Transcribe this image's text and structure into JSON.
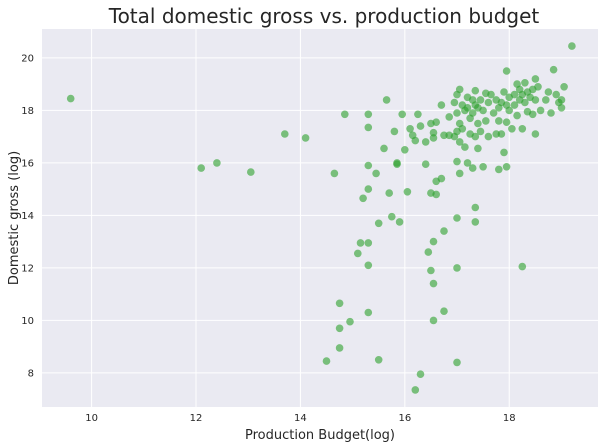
{
  "chart_data": {
    "type": "scatter",
    "title": "Total domestic gross vs. production budget",
    "xlabel": "Production Budget(log)",
    "ylabel": "Domestic gross (log)",
    "xlim": [
      9.05,
      19.7
    ],
    "ylim": [
      6.7,
      21.1
    ],
    "xticks": [
      10,
      12,
      14,
      16,
      18
    ],
    "yticks": [
      8,
      10,
      12,
      14,
      16,
      18,
      20
    ],
    "grid": true,
    "background": "#EAEAF2",
    "grid_color": "#FFFFFF",
    "marker_color": "#2CA02C",
    "points": [
      [
        9.6,
        18.45
      ],
      [
        12.1,
        15.8
      ],
      [
        12.4,
        16.0
      ],
      [
        13.05,
        15.65
      ],
      [
        13.7,
        17.1
      ],
      [
        14.1,
        16.95
      ],
      [
        14.5,
        8.45
      ],
      [
        14.65,
        15.6
      ],
      [
        14.75,
        10.65
      ],
      [
        14.75,
        8.95
      ],
      [
        14.75,
        9.7
      ],
      [
        14.85,
        17.85
      ],
      [
        14.95,
        9.95
      ],
      [
        15.1,
        12.55
      ],
      [
        15.15,
        12.95
      ],
      [
        15.2,
        14.65
      ],
      [
        15.3,
        17.85
      ],
      [
        15.3,
        17.35
      ],
      [
        15.3,
        15.9
      ],
      [
        15.3,
        15.0
      ],
      [
        15.3,
        12.95
      ],
      [
        15.3,
        12.1
      ],
      [
        15.3,
        10.3
      ],
      [
        15.45,
        15.6
      ],
      [
        15.5,
        13.7
      ],
      [
        15.5,
        8.5
      ],
      [
        15.6,
        16.55
      ],
      [
        15.65,
        18.4
      ],
      [
        15.7,
        14.85
      ],
      [
        15.75,
        13.95
      ],
      [
        15.8,
        17.2
      ],
      [
        15.85,
        16.0
      ],
      [
        15.85,
        15.95
      ],
      [
        15.9,
        13.75
      ],
      [
        15.95,
        17.85
      ],
      [
        16.0,
        16.5
      ],
      [
        16.05,
        14.9
      ],
      [
        16.1,
        17.3
      ],
      [
        16.15,
        17.05
      ],
      [
        16.2,
        7.35
      ],
      [
        16.2,
        16.85
      ],
      [
        16.25,
        17.85
      ],
      [
        16.3,
        7.95
      ],
      [
        16.3,
        17.4
      ],
      [
        16.4,
        16.8
      ],
      [
        16.4,
        15.95
      ],
      [
        16.45,
        12.6
      ],
      [
        16.5,
        17.5
      ],
      [
        16.5,
        14.85
      ],
      [
        16.5,
        11.9
      ],
      [
        16.55,
        17.15
      ],
      [
        16.55,
        16.95
      ],
      [
        16.55,
        13.0
      ],
      [
        16.55,
        11.4
      ],
      [
        16.55,
        10.0
      ],
      [
        16.6,
        17.55
      ],
      [
        16.6,
        15.3
      ],
      [
        16.6,
        14.8
      ],
      [
        16.7,
        18.2
      ],
      [
        16.7,
        15.4
      ],
      [
        16.75,
        17.05
      ],
      [
        16.75,
        13.4
      ],
      [
        16.75,
        10.35
      ],
      [
        16.85,
        17.75
      ],
      [
        16.85,
        17.05
      ],
      [
        16.95,
        18.3
      ],
      [
        16.95,
        17.0
      ],
      [
        17.0,
        18.6
      ],
      [
        17.0,
        17.9
      ],
      [
        17.0,
        17.2
      ],
      [
        17.0,
        16.05
      ],
      [
        17.0,
        13.9
      ],
      [
        17.0,
        12.0
      ],
      [
        17.0,
        8.4
      ],
      [
        17.05,
        18.8
      ],
      [
        17.05,
        17.5
      ],
      [
        17.05,
        16.8
      ],
      [
        17.05,
        15.6
      ],
      [
        17.1,
        18.2
      ],
      [
        17.1,
        17.3
      ],
      [
        17.15,
        18.0
      ],
      [
        17.15,
        16.6
      ],
      [
        17.2,
        18.5
      ],
      [
        17.2,
        18.1
      ],
      [
        17.2,
        16.0
      ],
      [
        17.25,
        17.7
      ],
      [
        17.25,
        17.1
      ],
      [
        17.3,
        18.4
      ],
      [
        17.3,
        17.9
      ],
      [
        17.3,
        15.8
      ],
      [
        17.35,
        18.75
      ],
      [
        17.35,
        18.2
      ],
      [
        17.35,
        17.0
      ],
      [
        17.35,
        14.3
      ],
      [
        17.35,
        13.75
      ],
      [
        17.4,
        18.1
      ],
      [
        17.4,
        17.5
      ],
      [
        17.4,
        16.55
      ],
      [
        17.45,
        18.4
      ],
      [
        17.45,
        17.2
      ],
      [
        17.5,
        18.0
      ],
      [
        17.5,
        15.85
      ],
      [
        17.55,
        18.65
      ],
      [
        17.55,
        17.6
      ],
      [
        17.6,
        18.3
      ],
      [
        17.6,
        17.0
      ],
      [
        17.65,
        18.6
      ],
      [
        17.7,
        17.9
      ],
      [
        17.75,
        18.4
      ],
      [
        17.75,
        17.1
      ],
      [
        17.8,
        18.1
      ],
      [
        17.8,
        17.6
      ],
      [
        17.8,
        15.75
      ],
      [
        17.85,
        18.3
      ],
      [
        17.85,
        17.1
      ],
      [
        17.9,
        18.7
      ],
      [
        17.9,
        16.4
      ],
      [
        17.95,
        19.5
      ],
      [
        17.95,
        18.2
      ],
      [
        17.95,
        17.55
      ],
      [
        17.95,
        15.85
      ],
      [
        18.0,
        18.5
      ],
      [
        18.0,
        18.0
      ],
      [
        18.05,
        17.3
      ],
      [
        18.1,
        18.6
      ],
      [
        18.1,
        18.2
      ],
      [
        18.15,
        19.0
      ],
      [
        18.15,
        17.8
      ],
      [
        18.2,
        18.8
      ],
      [
        18.2,
        18.4
      ],
      [
        18.25,
        18.6
      ],
      [
        18.25,
        17.3
      ],
      [
        18.25,
        12.05
      ],
      [
        18.3,
        19.05
      ],
      [
        18.3,
        18.3
      ],
      [
        18.35,
        18.7
      ],
      [
        18.35,
        17.95
      ],
      [
        18.4,
        18.5
      ],
      [
        18.45,
        18.8
      ],
      [
        18.45,
        17.85
      ],
      [
        18.5,
        19.2
      ],
      [
        18.5,
        18.4
      ],
      [
        18.5,
        17.1
      ],
      [
        18.55,
        18.9
      ],
      [
        18.6,
        18.0
      ],
      [
        18.7,
        18.4
      ],
      [
        18.75,
        18.7
      ],
      [
        18.8,
        17.9
      ],
      [
        18.85,
        19.55
      ],
      [
        18.9,
        18.6
      ],
      [
        18.95,
        18.3
      ],
      [
        19.0,
        18.4
      ],
      [
        19.0,
        18.1
      ],
      [
        19.05,
        18.9
      ],
      [
        19.2,
        20.45
      ]
    ]
  }
}
